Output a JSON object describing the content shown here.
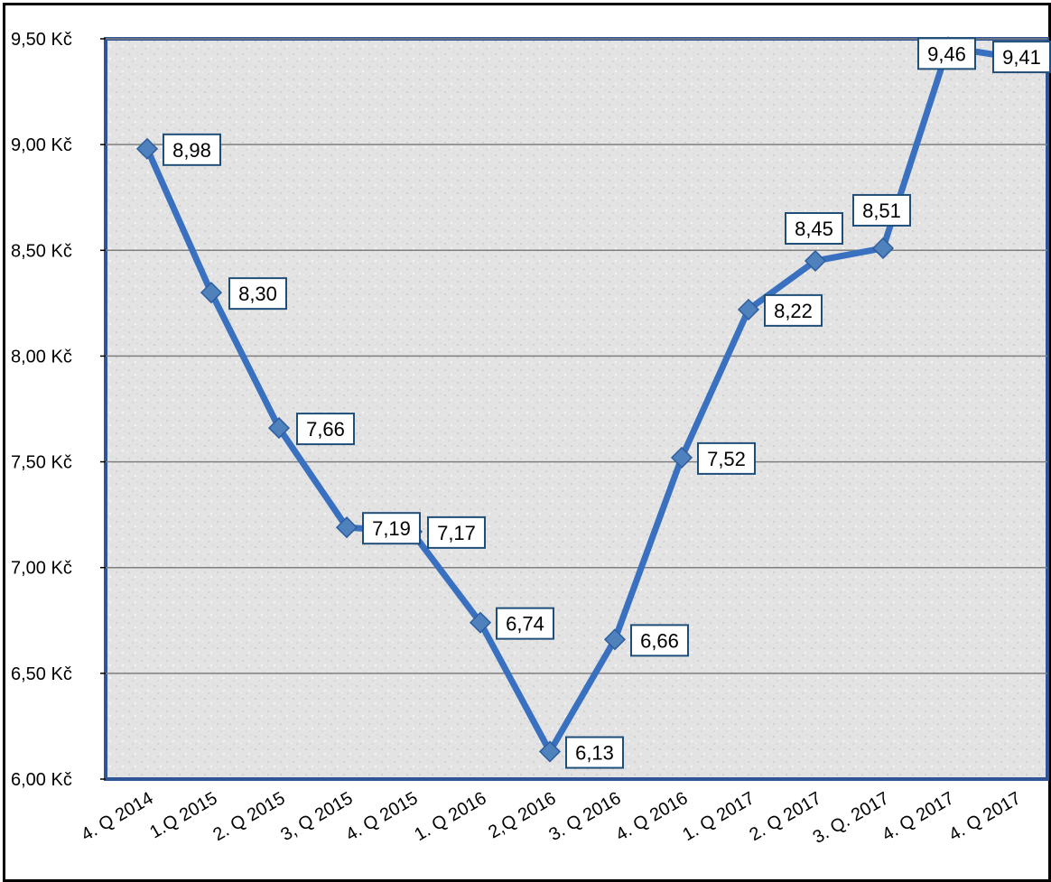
{
  "chart_data": {
    "type": "line",
    "title": "",
    "xlabel": "",
    "ylabel": "",
    "categories": [
      "4. Q 2014",
      "1.Q 2015",
      "2. Q 2015",
      "3, Q 2015",
      "4. Q 2015",
      "1. Q 2016",
      "2,Q 2016",
      "3. Q 2016",
      "4. Q 2016",
      "1. Q 2017",
      "2. Q 2017",
      "3. Q. 2017",
      "4. Q 2017",
      "4. Q 2017"
    ],
    "series": [
      {
        "values": [
          8.98,
          8.3,
          7.66,
          7.19,
          7.17,
          6.74,
          6.13,
          6.66,
          7.52,
          8.22,
          8.45,
          8.51,
          9.46,
          9.41
        ],
        "data_labels": [
          "8,98",
          "8,30",
          "7,66",
          "7,19",
          "7,17",
          "6,74",
          "6,13",
          "6,66",
          "7,52",
          "8,22",
          "8,45",
          "8,51",
          "9,46",
          "9,41"
        ]
      }
    ],
    "ylim": [
      6.0,
      9.5
    ],
    "y_ticks": [
      6.0,
      6.5,
      7.0,
      7.5,
      8.0,
      8.5,
      9.0,
      9.5
    ],
    "y_tick_labels": [
      "6,00 Kč",
      "6,50 Kč",
      "7,00 Kč",
      "7,50 Kč",
      "8,00 Kč",
      "8,50 Kč",
      "9,00 Kč",
      "9,50 Kč"
    ],
    "grid": true,
    "legend": "none",
    "colors": {
      "line": "#3A70C0",
      "marker": "#4F81BD",
      "plot_border": "#2F5597",
      "gridline": "#7F7F7F",
      "label_border": "#1F4E79"
    }
  }
}
